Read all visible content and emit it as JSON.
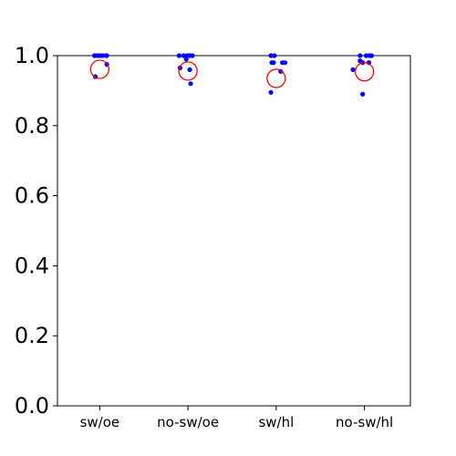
{
  "chart_data": {
    "type": "scatter",
    "categories": [
      "sw/oe",
      "no-sw/oe",
      "sw/hl",
      "no-sw/hl"
    ],
    "ylim": [
      0.0,
      1.0
    ],
    "yticks": [
      "0.0",
      "0.2",
      "0.4",
      "0.6",
      "0.8",
      "1.0"
    ],
    "grid": false,
    "series": [
      {
        "role": "points",
        "color": "#0000ff",
        "points": [
          {
            "category": "sw/oe",
            "jitter": -0.06,
            "y": 1.0
          },
          {
            "category": "sw/oe",
            "jitter": -0.03,
            "y": 1.0
          },
          {
            "category": "sw/oe",
            "jitter": 0.0,
            "y": 1.0
          },
          {
            "category": "sw/oe",
            "jitter": 0.03,
            "y": 1.0
          },
          {
            "category": "sw/oe",
            "jitter": 0.07,
            "y": 1.0
          },
          {
            "category": "sw/oe",
            "jitter": 0.08,
            "y": 1.0
          },
          {
            "category": "sw/oe",
            "jitter": 0.08,
            "y": 0.975
          },
          {
            "category": "sw/oe",
            "jitter": -0.05,
            "y": 0.94
          },
          {
            "category": "no-sw/oe",
            "jitter": -0.1,
            "y": 1.0
          },
          {
            "category": "no-sw/oe",
            "jitter": -0.05,
            "y": 1.0
          },
          {
            "category": "no-sw/oe",
            "jitter": -0.01,
            "y": 1.0
          },
          {
            "category": "no-sw/oe",
            "jitter": 0.02,
            "y": 1.0
          },
          {
            "category": "no-sw/oe",
            "jitter": 0.05,
            "y": 1.0
          },
          {
            "category": "no-sw/oe",
            "jitter": -0.02,
            "y": 0.99
          },
          {
            "category": "no-sw/oe",
            "jitter": -0.09,
            "y": 0.965
          },
          {
            "category": "no-sw/oe",
            "jitter": 0.02,
            "y": 0.96
          },
          {
            "category": "no-sw/oe",
            "jitter": 0.03,
            "y": 0.92
          },
          {
            "category": "sw/hl",
            "jitter": -0.06,
            "y": 1.0
          },
          {
            "category": "sw/hl",
            "jitter": -0.02,
            "y": 1.0
          },
          {
            "category": "sw/hl",
            "jitter": -0.05,
            "y": 0.98
          },
          {
            "category": "sw/hl",
            "jitter": -0.03,
            "y": 0.98
          },
          {
            "category": "sw/hl",
            "jitter": 0.07,
            "y": 0.98
          },
          {
            "category": "sw/hl",
            "jitter": 0.1,
            "y": 0.98
          },
          {
            "category": "sw/hl",
            "jitter": 0.05,
            "y": 0.955
          },
          {
            "category": "sw/hl",
            "jitter": -0.06,
            "y": 0.895
          },
          {
            "category": "no-sw/hl",
            "jitter": -0.05,
            "y": 1.0
          },
          {
            "category": "no-sw/hl",
            "jitter": 0.02,
            "y": 1.0
          },
          {
            "category": "no-sw/hl",
            "jitter": 0.06,
            "y": 1.0
          },
          {
            "category": "no-sw/hl",
            "jitter": 0.08,
            "y": 1.0
          },
          {
            "category": "no-sw/hl",
            "jitter": -0.05,
            "y": 0.985
          },
          {
            "category": "no-sw/hl",
            "jitter": -0.02,
            "y": 0.98
          },
          {
            "category": "no-sw/hl",
            "jitter": 0.05,
            "y": 0.98
          },
          {
            "category": "no-sw/hl",
            "jitter": -0.13,
            "y": 0.96
          },
          {
            "category": "no-sw/hl",
            "jitter": -0.02,
            "y": 0.89
          }
        ]
      },
      {
        "role": "mean",
        "color": "#ff0000",
        "marker": "open-circle",
        "values": [
          0.961,
          0.956,
          0.935,
          0.954
        ]
      }
    ]
  }
}
